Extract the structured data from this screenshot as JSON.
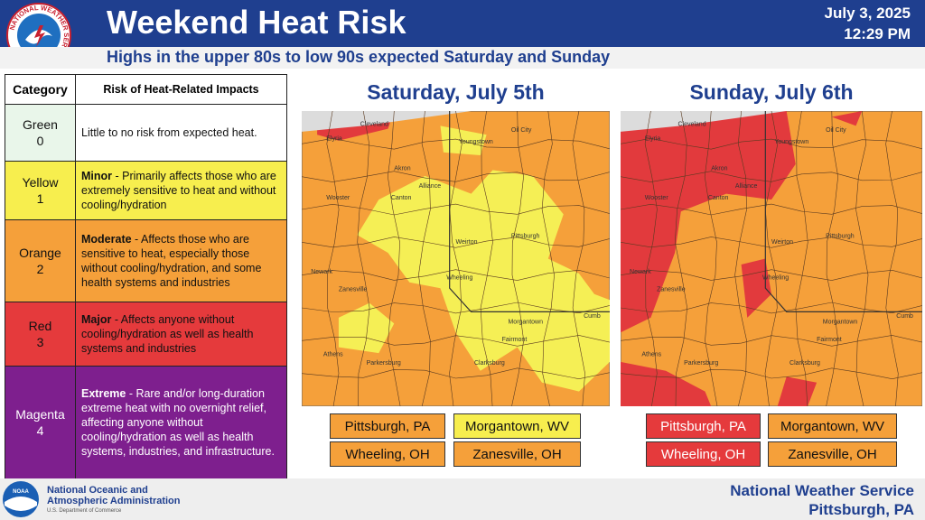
{
  "header": {
    "title": "Weekend Heat Risk",
    "date": "July 3, 2025",
    "time": "12:29 PM",
    "subtitle": "Highs in the upper 80s to low 90s expected Saturday and Sunday"
  },
  "logo": {
    "ring_text": "NATIONAL WEATHER SERVICE"
  },
  "table": {
    "columns": [
      "Category",
      "Risk of Heat-Related Impacts"
    ],
    "rows": [
      {
        "category": "Green",
        "level": 0,
        "color": "#e9f6ea",
        "text": "Little to no risk from expected heat."
      },
      {
        "category": "Yellow",
        "level": 1,
        "color": "#f7ee4e",
        "label": "Minor",
        "text": " - Primarily affects those who are extremely sensitive to heat and without cooling/hydration"
      },
      {
        "category": "Orange",
        "level": 2,
        "color": "#f5a03a",
        "label": "Moderate",
        "text": " - Affects those who are sensitive to heat, especially those without cooling/hydration, and some health systems and industries"
      },
      {
        "category": "Red",
        "level": 3,
        "color": "#e53a3c",
        "label": "Major",
        "text": " - Affects anyone without cooling/hydration as well as health systems and industries"
      },
      {
        "category": "Magenta",
        "level": 4,
        "color": "#7e1f8e",
        "label": "Extreme",
        "text": " - Rare and/or long-duration extreme heat with no overnight relief, affecting anyone without cooling/hydration as well as health systems, industries, and infrastructure."
      }
    ]
  },
  "maps": [
    {
      "title": "Saturday, July 5th",
      "cities": [
        {
          "name": "Pittsburgh, PA",
          "color": "#f5a03a"
        },
        {
          "name": "Morgantown, WV",
          "color": "#f7ee4e"
        },
        {
          "name": "Wheeling, OH",
          "color": "#f5a03a"
        },
        {
          "name": "Zanesville, OH",
          "color": "#f5a03a"
        }
      ]
    },
    {
      "title": "Sunday, July 6th",
      "cities": [
        {
          "name": "Pittsburgh, PA",
          "color": "#e53a3c"
        },
        {
          "name": "Morgantown, WV",
          "color": "#f5a03a"
        },
        {
          "name": "Wheeling, OH",
          "color": "#e53a3c"
        },
        {
          "name": "Zanesville, OH",
          "color": "#f5a03a"
        }
      ]
    }
  ],
  "map_labels": [
    "Cleveland",
    "Elyria",
    "Akron",
    "Youngstown",
    "Oil City",
    "Wooster",
    "Canton",
    "Alliance",
    "Weirton",
    "Pittsburgh",
    "Wheeling",
    "Zanesville",
    "Newark",
    "Morgantown",
    "Fairmont",
    "Clarksburg",
    "Athens",
    "Parkersburg",
    "Cumb"
  ],
  "footer": {
    "agency": "National Oceanic and Atmospheric Administration",
    "department": "U.S. Department of Commerce",
    "noaa": "NOAA",
    "office": "National Weather Service",
    "location": "Pittsburgh, PA"
  }
}
